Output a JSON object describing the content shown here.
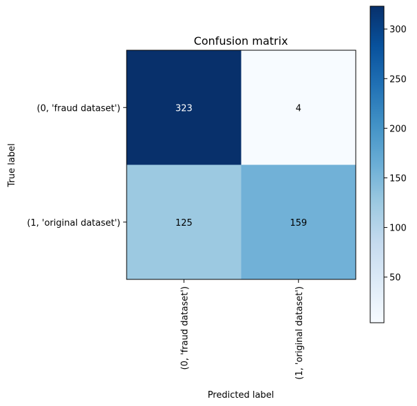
{
  "chart_data": {
    "type": "heatmap",
    "title": "Confusion matrix",
    "xlabel": "Predicted label",
    "ylabel": "True label",
    "row_labels": [
      "(0, 'fraud dataset')",
      "(1, 'original dataset')"
    ],
    "col_labels": [
      "(0, 'fraud dataset')",
      "(1, 'original dataset')"
    ],
    "values": [
      [
        323,
        4
      ],
      [
        125,
        159
      ]
    ],
    "colormap": "Blues",
    "color_range": [
      4,
      323
    ],
    "colorbar_ticks": [
      "50",
      "100",
      "150",
      "200",
      "250",
      "300"
    ],
    "colorbar_tick_values": [
      50,
      100,
      150,
      200,
      250,
      300
    ],
    "grid": false
  }
}
